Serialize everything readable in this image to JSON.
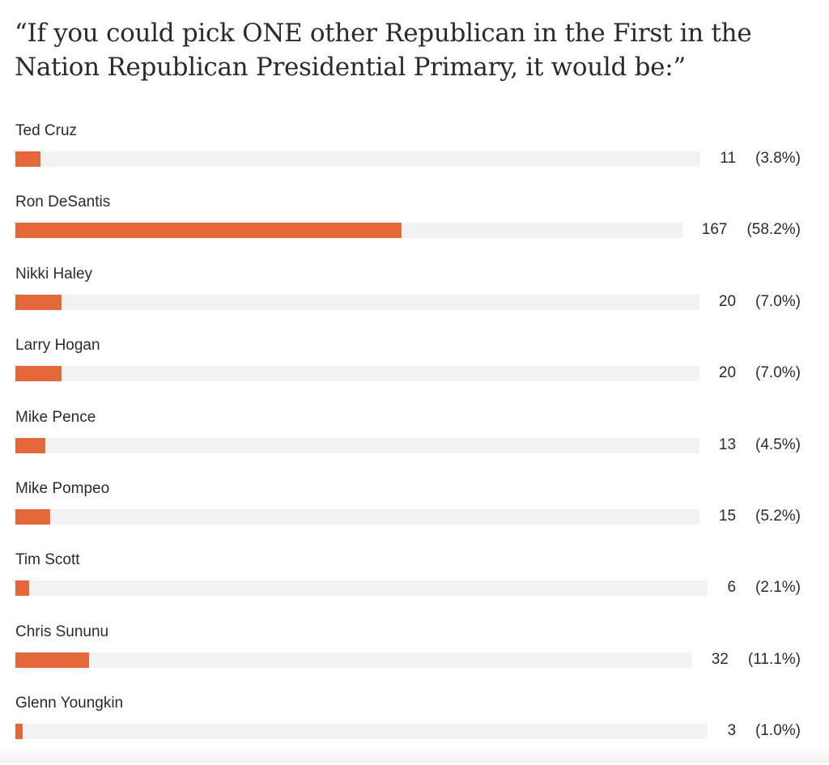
{
  "chart_data": {
    "type": "bar",
    "orientation": "horizontal",
    "title": "“If you could pick ONE other Republican in the First in the Nation Republican Presidential Primary, it would be:”",
    "bar_color": "#e4683a",
    "track_color": "#f2f2f2",
    "max_value": 287,
    "categories": [
      "Ted Cruz",
      "Ron DeSantis",
      "Nikki Haley",
      "Larry Hogan",
      "Mike Pence",
      "Mike Pompeo",
      "Tim Scott",
      "Chris Sununu",
      "Glenn Youngkin"
    ],
    "counts": [
      11,
      167,
      20,
      20,
      13,
      15,
      6,
      32,
      3
    ],
    "percents": [
      "(3.8%)",
      "(58.2%)",
      "(7.0%)",
      "(7.0%)",
      "(4.5%)",
      "(5.2%)",
      "(2.1%)",
      "(11.1%)",
      "(1.0%)"
    ]
  }
}
